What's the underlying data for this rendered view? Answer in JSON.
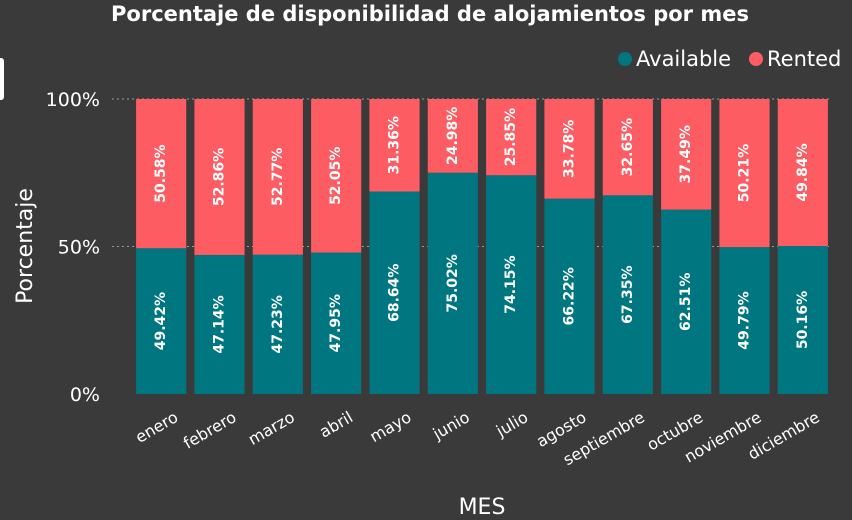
{
  "chart_data": {
    "type": "bar",
    "stacked": true,
    "title": "Porcentaje de disponibilidad de alojamientos por mes",
    "xlabel": "MES",
    "ylabel": "Porcentaje",
    "ylim": [
      0,
      100
    ],
    "yticks": [
      "0%",
      "50%",
      "100%"
    ],
    "grid": true,
    "legend_position": "top-right",
    "categories": [
      "enero",
      "febrero",
      "marzo",
      "abril",
      "mayo",
      "junio",
      "julio",
      "agosto",
      "septiembre",
      "octubre",
      "noviembre",
      "diciembre"
    ],
    "series": [
      {
        "name": "Available",
        "color": "#007681",
        "values": [
          49.42,
          47.14,
          47.23,
          47.95,
          68.64,
          75.02,
          74.15,
          66.22,
          67.35,
          62.51,
          49.79,
          50.16
        ],
        "labels": [
          "49.42%",
          "47.14%",
          "47.23%",
          "47.95%",
          "68.64%",
          "75.02%",
          "74.15%",
          "66.22%",
          "67.35%",
          "62.51%",
          "49.79%",
          "50.16%"
        ]
      },
      {
        "name": "Rented",
        "color": "#fd5c63",
        "values": [
          50.58,
          52.86,
          52.77,
          52.05,
          31.36,
          24.98,
          25.85,
          33.78,
          32.65,
          37.49,
          50.21,
          49.84
        ],
        "labels": [
          "50.58%",
          "52.86%",
          "52.77%",
          "52.05%",
          "31.36%",
          "24.98%",
          "25.85%",
          "33.78%",
          "32.65%",
          "37.49%",
          "50.21%",
          "49.84%"
        ]
      }
    ]
  }
}
